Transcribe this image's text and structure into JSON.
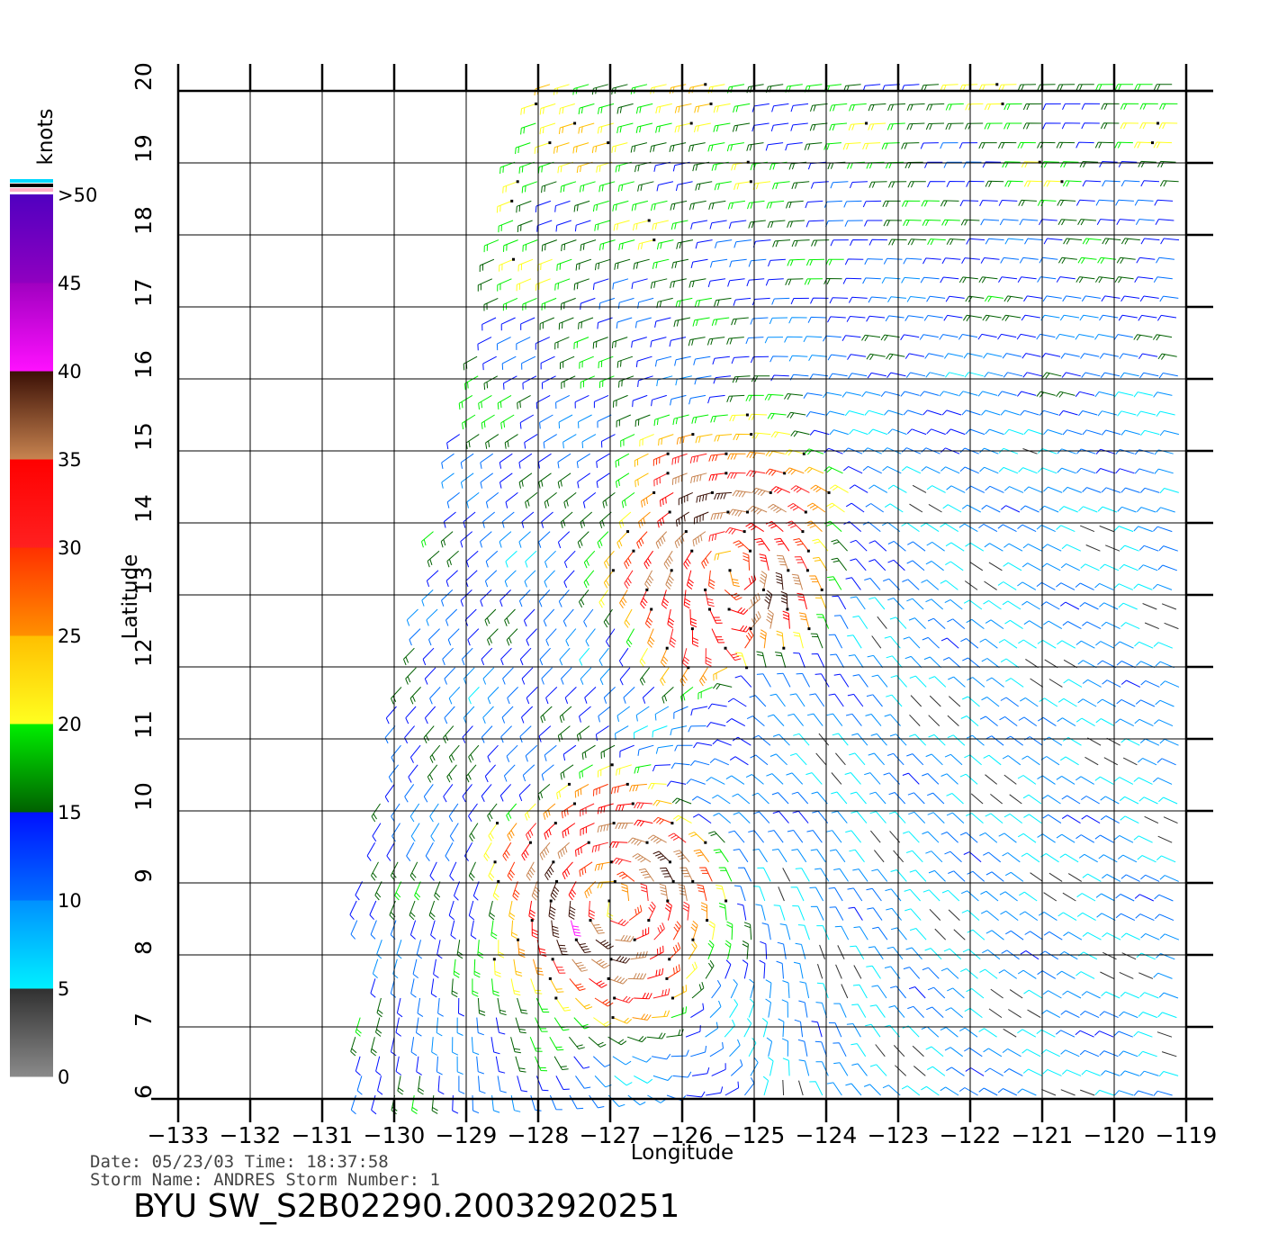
{
  "chart_data": {
    "type": "vector-field",
    "xlabel": "Longitude",
    "ylabel": "Latitude",
    "x_ticks": [
      "-133",
      "-132",
      "-131",
      "-130",
      "-129",
      "-128",
      "-127",
      "-126",
      "-125",
      "-124",
      "-123",
      "-122",
      "-121",
      "-120",
      "-119"
    ],
    "y_ticks": [
      "6",
      "7",
      "8",
      "9",
      "10",
      "11",
      "12",
      "13",
      "14",
      "15",
      "16",
      "17",
      "18",
      "19",
      "20"
    ],
    "xlim": [
      -133,
      -119
    ],
    "ylim": [
      6,
      20
    ],
    "grid": true,
    "storm_centers": [
      {
        "lon": -125.3,
        "lat": 13.6
      },
      {
        "lon": -127.0,
        "lat": 8.8
      }
    ],
    "colorbar": {
      "unit": "knots",
      "labels": [
        "0",
        "5",
        "10",
        "15",
        "20",
        "25",
        "30",
        "35",
        "40",
        "45",
        ">50"
      ],
      "bands": [
        {
          "from": 0,
          "to": 5,
          "top": "#303030",
          "bottom": "#8a8a8a"
        },
        {
          "from": 5,
          "to": 10,
          "top": "#0090ff",
          "bottom": "#00f0ff"
        },
        {
          "from": 10,
          "to": 15,
          "top": "#0010ff",
          "bottom": "#0070ff"
        },
        {
          "from": 15,
          "to": 20,
          "top": "#00f000",
          "bottom": "#006000"
        },
        {
          "from": 20,
          "to": 25,
          "top": "#ffbf00",
          "bottom": "#ffff20"
        },
        {
          "from": 25,
          "to": 30,
          "top": "#ff3000",
          "bottom": "#ff9000"
        },
        {
          "from": 30,
          "to": 35,
          "top": "#ff0000",
          "bottom": "#ff2020"
        },
        {
          "from": 35,
          "to": 40,
          "top": "#3a0f05",
          "bottom": "#c88450"
        },
        {
          "from": 40,
          "to": 45,
          "top": "#a000c0",
          "bottom": "#ff10ff"
        },
        {
          "from": 45,
          "to": 50,
          "top": "#5000c0",
          "bottom": "#9000c0"
        }
      ],
      "extra_colors": [
        "#00d8ff",
        "#000000",
        "#ffb0c8"
      ]
    }
  },
  "footer": {
    "date_line": "Date: 05/23/03   Time: 18:37:58",
    "storm_line": "Storm Name: ANDRES   Storm Number: 1",
    "title": "BYU SW_S2B02290.20032920251"
  }
}
